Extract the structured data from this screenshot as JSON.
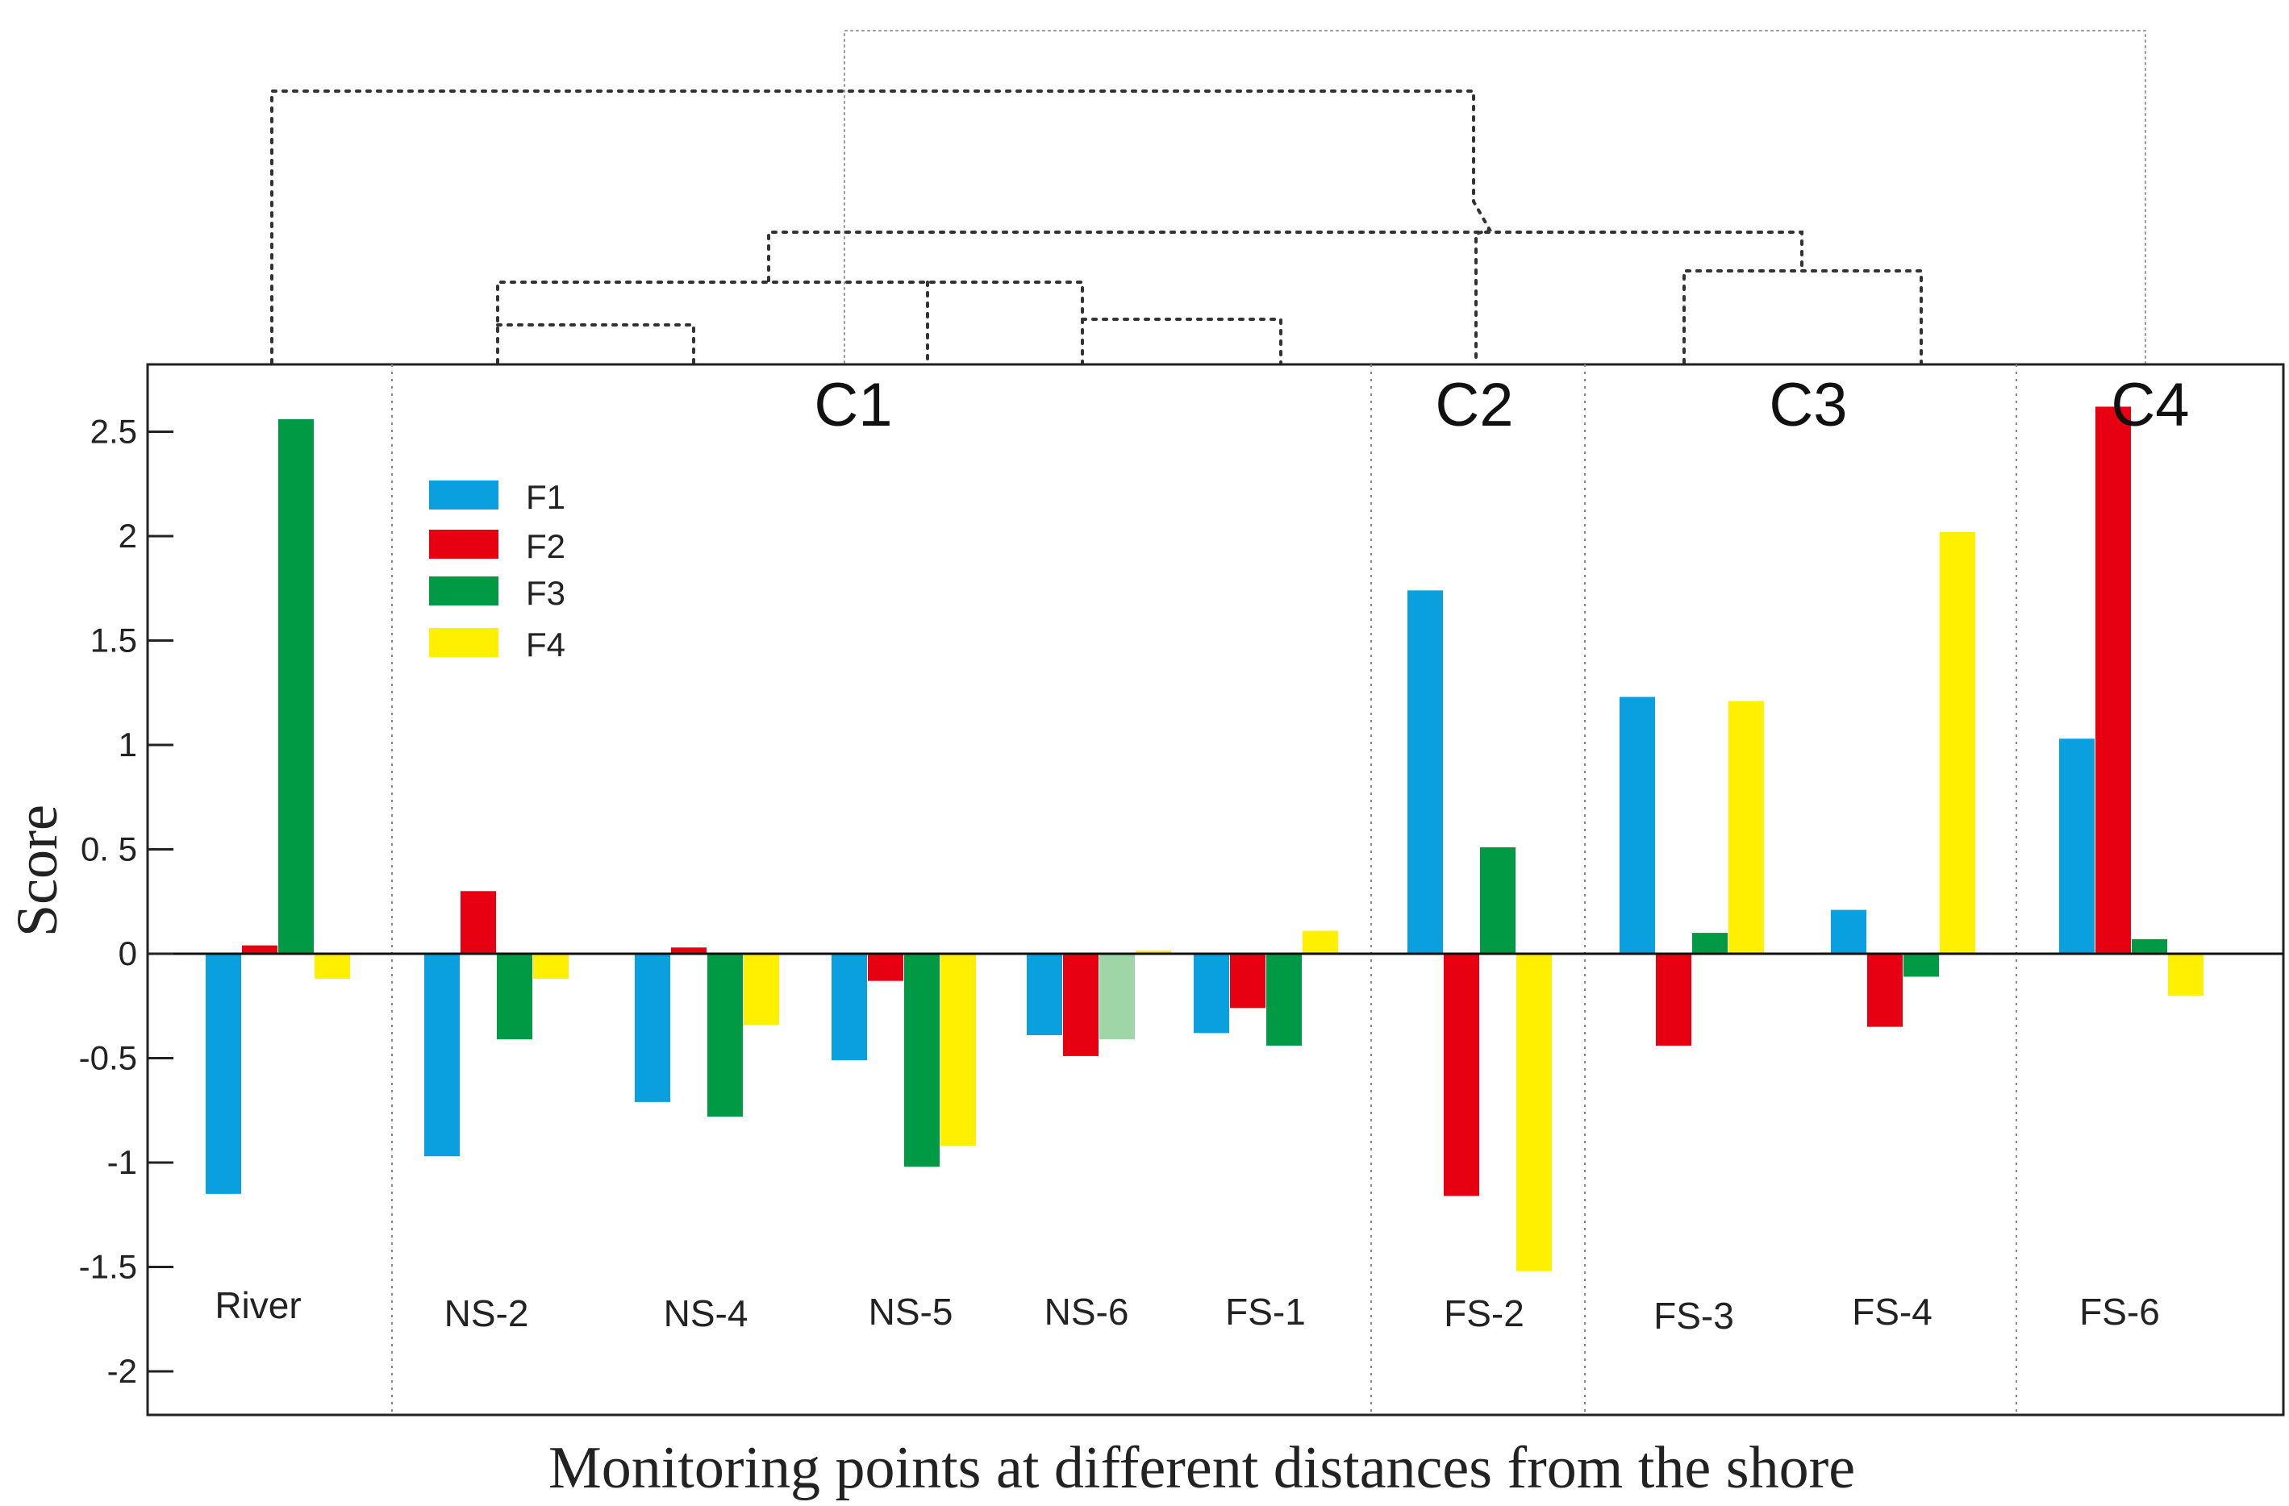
{
  "chart_data": {
    "type": "bar",
    "ylabel": "Score",
    "xlabel": "Monitoring points at different distances from the shore",
    "ylim": [
      -2,
      2.7
    ],
    "yticks": [
      {
        "v": 2.5,
        "label": "2.5"
      },
      {
        "v": 2,
        "label": "2"
      },
      {
        "v": 1.5,
        "label": "1.5"
      },
      {
        "v": 1,
        "label": "1"
      },
      {
        "v": 0.5,
        "label": "0. 5"
      },
      {
        "v": 0,
        "label": "0"
      },
      {
        "v": -0.5,
        "label": "-0.5"
      },
      {
        "v": -1,
        "label": "-1"
      },
      {
        "v": -1.5,
        "label": "-1.5"
      },
      {
        "v": -2,
        "label": "-2"
      }
    ],
    "categories": [
      "River",
      "NS-2",
      "NS-4",
      "NS-5",
      "NS-6",
      "FS-1",
      "FS-2",
      "FS-3",
      "FS-4",
      "FS-6"
    ],
    "series": [
      {
        "name": "F1",
        "color": "#0aa0e0",
        "values": [
          -1.15,
          -0.97,
          -0.71,
          -0.51,
          -0.39,
          -0.38,
          1.74,
          1.23,
          0.21,
          1.03
        ]
      },
      {
        "name": "F2",
        "color": "#e60012",
        "values": [
          0.04,
          0.3,
          0.03,
          -0.13,
          -0.49,
          -0.26,
          -1.16,
          -0.44,
          -0.35,
          2.62
        ]
      },
      {
        "name": "F3",
        "color": "#009a44",
        "values": [
          2.56,
          -0.41,
          -0.78,
          -1.02,
          -0.41,
          -0.44,
          0.51,
          0.1,
          -0.11,
          0.07
        ]
      },
      {
        "name": "F4",
        "color": "#fff000",
        "values": [
          -0.12,
          -0.12,
          -0.34,
          -0.92,
          0.01,
          0.11,
          -1.52,
          1.21,
          2.02,
          -0.2
        ]
      }
    ],
    "clusters": [
      {
        "label": "C1",
        "members": [
          "NS-2",
          "NS-4",
          "NS-5",
          "NS-6",
          "FS-1"
        ]
      },
      {
        "label": "C2",
        "members": [
          "FS-2"
        ]
      },
      {
        "label": "C3",
        "members": [
          "FS-3",
          "FS-4"
        ]
      },
      {
        "label": "C4",
        "members": [
          "FS-6"
        ]
      }
    ],
    "legend_position": "top-left",
    "grid": false,
    "dendrogram": "dotted, drawn above the plot"
  }
}
